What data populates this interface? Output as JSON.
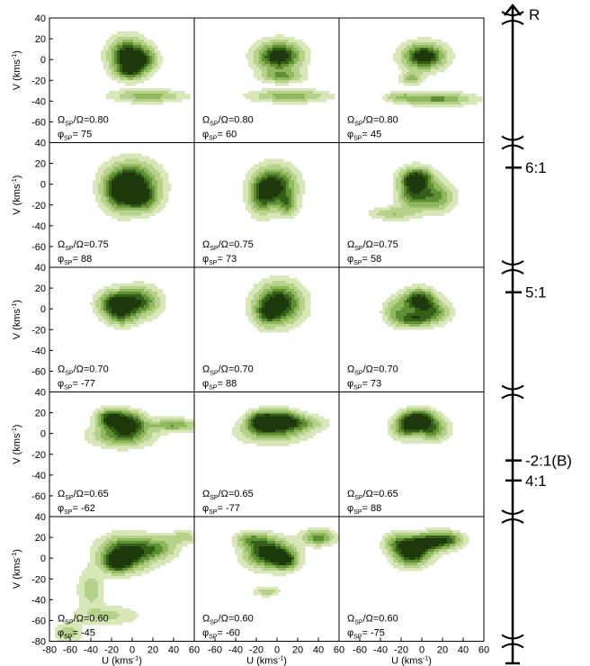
{
  "chart_data": {
    "type": "contour",
    "rows": 5,
    "cols": 3,
    "x_axis": {
      "label_main": "U (kms",
      "label_unit_exp": "-1",
      "label_close": ")",
      "lim": [
        -80,
        60
      ],
      "ticks": [
        -80,
        -60,
        -40,
        -20,
        0,
        20,
        40,
        60
      ]
    },
    "y_axis": {
      "label_main": "V (kms",
      "label_unit_exp": "-1",
      "label_close": ")",
      "lim": [
        -80,
        40
      ],
      "ticks": [
        40,
        20,
        0,
        -20,
        -40,
        -60,
        -80
      ]
    },
    "panels": [
      {
        "row": 0,
        "col": 0,
        "omega_ratio": "0.80",
        "phi": "75",
        "blobs": [
          {
            "cx": -5,
            "cy": 3,
            "sx": 11,
            "sy": 11,
            "a": 1.0
          },
          {
            "cx": 12,
            "cy": 0,
            "sx": 8,
            "sy": 8,
            "a": 0.6
          },
          {
            "cx": -2,
            "cy": -12,
            "sx": 8,
            "sy": 5,
            "a": 0.5
          },
          {
            "cx": 15,
            "cy": -35,
            "sx": 22,
            "sy": 4,
            "a": 0.45
          }
        ]
      },
      {
        "row": 0,
        "col": 1,
        "omega_ratio": "0.80",
        "phi": "60",
        "blobs": [
          {
            "cx": 2,
            "cy": 3,
            "sx": 14,
            "sy": 9,
            "a": 1.0
          },
          {
            "cx": 5,
            "cy": -16,
            "sx": 13,
            "sy": 4,
            "a": 0.45
          },
          {
            "cx": 12,
            "cy": -35,
            "sx": 24,
            "sy": 4,
            "a": 0.45
          }
        ]
      },
      {
        "row": 0,
        "col": 2,
        "omega_ratio": "0.80",
        "phi": "45",
        "blobs": [
          {
            "cx": 2,
            "cy": 3,
            "sx": 13,
            "sy": 8,
            "a": 1.0
          },
          {
            "cx": -10,
            "cy": -18,
            "sx": 7,
            "sy": 4,
            "a": 0.4
          },
          {
            "cx": 15,
            "cy": -38,
            "sx": 22,
            "sy": 4,
            "a": 0.55
          },
          {
            "cx": -20,
            "cy": -36,
            "sx": 10,
            "sy": 3,
            "a": 0.3
          }
        ]
      },
      {
        "row": 1,
        "col": 0,
        "omega_ratio": "0.75",
        "phi": "88",
        "blobs": [
          {
            "cx": 0,
            "cy": 0,
            "sx": 16,
            "sy": 13,
            "a": 1.0
          },
          {
            "cx": -12,
            "cy": -8,
            "sx": 10,
            "sy": 12,
            "a": 0.6
          },
          {
            "cx": 10,
            "cy": -15,
            "sx": 10,
            "sy": 8,
            "a": 0.5
          }
        ]
      },
      {
        "row": 1,
        "col": 1,
        "omega_ratio": "0.75",
        "phi": "73",
        "blobs": [
          {
            "cx": -2,
            "cy": -2,
            "sx": 13,
            "sy": 12,
            "a": 0.9
          },
          {
            "cx": -15,
            "cy": -12,
            "sx": 8,
            "sy": 12,
            "a": 0.5
          },
          {
            "cx": 10,
            "cy": -20,
            "sx": 6,
            "sy": 7,
            "a": 0.45
          }
        ]
      },
      {
        "row": 1,
        "col": 2,
        "omega_ratio": "0.75",
        "phi": "58",
        "blobs": [
          {
            "cx": -5,
            "cy": 5,
            "sx": 10,
            "sy": 7,
            "a": 1.0
          },
          {
            "cx": 12,
            "cy": -12,
            "sx": 12,
            "sy": 9,
            "a": 0.6
          },
          {
            "cx": -10,
            "cy": -10,
            "sx": 9,
            "sy": 9,
            "a": 0.55
          },
          {
            "cx": -28,
            "cy": -28,
            "sx": 14,
            "sy": 4,
            "a": 0.35
          }
        ]
      },
      {
        "row": 2,
        "col": 0,
        "omega_ratio": "0.70",
        "phi": "-77",
        "blobs": [
          {
            "cx": -15,
            "cy": 5,
            "sx": 11,
            "sy": 8,
            "a": 1.0
          },
          {
            "cx": 8,
            "cy": 7,
            "sx": 12,
            "sy": 9,
            "a": 0.7
          },
          {
            "cx": -10,
            "cy": -8,
            "sx": 10,
            "sy": 6,
            "a": 0.4
          }
        ]
      },
      {
        "row": 2,
        "col": 1,
        "omega_ratio": "0.70",
        "phi": "88",
        "blobs": [
          {
            "cx": 2,
            "cy": 5,
            "sx": 14,
            "sy": 12,
            "a": 1.0
          },
          {
            "cx": -10,
            "cy": -5,
            "sx": 8,
            "sy": 8,
            "a": 0.45
          }
        ]
      },
      {
        "row": 2,
        "col": 2,
        "omega_ratio": "0.70",
        "phi": "73",
        "blobs": [
          {
            "cx": -3,
            "cy": 8,
            "sx": 10,
            "sy": 7,
            "a": 1.0
          },
          {
            "cx": -8,
            "cy": -10,
            "sx": 11,
            "sy": 5,
            "a": 0.7
          },
          {
            "cx": 12,
            "cy": -3,
            "sx": 10,
            "sy": 7,
            "a": 0.55
          },
          {
            "cx": -25,
            "cy": -2,
            "sx": 8,
            "sy": 8,
            "a": 0.4
          }
        ]
      },
      {
        "row": 3,
        "col": 0,
        "omega_ratio": "0.65",
        "phi": "-62",
        "blobs": [
          {
            "cx": -20,
            "cy": 14,
            "sx": 9,
            "sy": 6,
            "a": 1.0
          },
          {
            "cx": -2,
            "cy": 10,
            "sx": 10,
            "sy": 7,
            "a": 0.8
          },
          {
            "cx": -10,
            "cy": -2,
            "sx": 18,
            "sy": 7,
            "a": 0.6
          },
          {
            "cx": 40,
            "cy": 8,
            "sx": 16,
            "sy": 4,
            "a": 0.5
          }
        ]
      },
      {
        "row": 3,
        "col": 1,
        "omega_ratio": "0.65",
        "phi": "-77",
        "blobs": [
          {
            "cx": -15,
            "cy": 12,
            "sx": 9,
            "sy": 6,
            "a": 1.0
          },
          {
            "cx": 5,
            "cy": 13,
            "sx": 11,
            "sy": 6,
            "a": 0.85
          },
          {
            "cx": -5,
            "cy": 2,
            "sx": 20,
            "sy": 7,
            "a": 0.55
          },
          {
            "cx": 25,
            "cy": 10,
            "sx": 14,
            "sy": 5,
            "a": 0.4
          }
        ]
      },
      {
        "row": 3,
        "col": 2,
        "omega_ratio": "0.65",
        "phi": "88",
        "blobs": [
          {
            "cx": -3,
            "cy": 14,
            "sx": 10,
            "sy": 6,
            "a": 1.0
          },
          {
            "cx": -15,
            "cy": 6,
            "sx": 9,
            "sy": 7,
            "a": 0.7
          },
          {
            "cx": 10,
            "cy": 4,
            "sx": 10,
            "sy": 7,
            "a": 0.6
          }
        ]
      },
      {
        "row": 4,
        "col": 0,
        "omega_ratio": "0.60",
        "phi": "-45",
        "blobs": [
          {
            "cx": -5,
            "cy": 5,
            "sx": 16,
            "sy": 10,
            "a": 1.0
          },
          {
            "cx": -15,
            "cy": -5,
            "sx": 9,
            "sy": 6,
            "a": 0.7
          },
          {
            "cx": 25,
            "cy": 10,
            "sx": 12,
            "sy": 7,
            "a": 0.45
          },
          {
            "cx": -40,
            "cy": -30,
            "sx": 8,
            "sy": 12,
            "a": 0.3
          },
          {
            "cx": -25,
            "cy": -55,
            "sx": 20,
            "sy": 6,
            "a": 0.25
          },
          {
            "cx": -62,
            "cy": -72,
            "sx": 8,
            "sy": 6,
            "a": 0.3
          },
          {
            "cx": 50,
            "cy": 20,
            "sx": 10,
            "sy": 4,
            "a": 0.3
          }
        ]
      },
      {
        "row": 4,
        "col": 1,
        "omega_ratio": "0.60",
        "phi": "-60",
        "blobs": [
          {
            "cx": -8,
            "cy": 5,
            "sx": 14,
            "sy": 9,
            "a": 1.0
          },
          {
            "cx": 8,
            "cy": -2,
            "sx": 8,
            "sy": 6,
            "a": 0.7
          },
          {
            "cx": 40,
            "cy": 20,
            "sx": 10,
            "sy": 5,
            "a": 0.6
          },
          {
            "cx": -25,
            "cy": 18,
            "sx": 10,
            "sy": 5,
            "a": 0.45
          },
          {
            "cx": -10,
            "cy": -32,
            "sx": 8,
            "sy": 3,
            "a": 0.3
          }
        ]
      },
      {
        "row": 4,
        "col": 2,
        "omega_ratio": "0.60",
        "phi": "-75",
        "blobs": [
          {
            "cx": -10,
            "cy": 5,
            "sx": 11,
            "sy": 8,
            "a": 1.0
          },
          {
            "cx": 5,
            "cy": 15,
            "sx": 14,
            "sy": 6,
            "a": 0.8
          },
          {
            "cx": 25,
            "cy": 18,
            "sx": 10,
            "sy": 5,
            "a": 0.55
          },
          {
            "cx": -25,
            "cy": 15,
            "sx": 8,
            "sy": 6,
            "a": 0.4
          }
        ]
      }
    ],
    "contour_levels": [
      0.08,
      0.2,
      0.35,
      0.5,
      0.65,
      0.8
    ],
    "fill_colors": [
      "#f2f6e4",
      "#d7e7b8",
      "#b6d189",
      "#8fb75c",
      "#5e8f33",
      "#355f19",
      "#1e3a0d"
    ],
    "resonance_scale": {
      "top_label": "R",
      "ticks": [
        {
          "label": "6:1",
          "row": 1,
          "frac": 0.2
        },
        {
          "label": "5:1",
          "row": 2,
          "frac": 0.2
        },
        {
          "label": "-2:1(B)",
          "row": 3,
          "frac": 0.55
        },
        {
          "label": "4:1",
          "row": 3,
          "frac": 0.71
        }
      ]
    }
  }
}
